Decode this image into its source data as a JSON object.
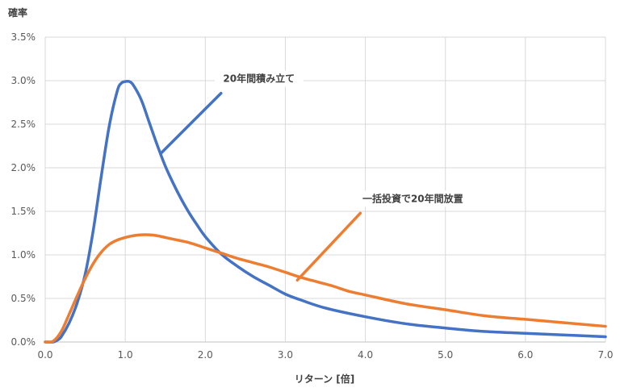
{
  "chart_data": {
    "type": "line",
    "ylabel": "確率",
    "xlabel": "リターン [倍]",
    "xlim": [
      0,
      7
    ],
    "ylim": [
      0,
      0.035
    ],
    "x_ticks": [
      "0.0",
      "1.0",
      "2.0",
      "3.0",
      "4.0",
      "5.0",
      "6.0",
      "7.0"
    ],
    "y_ticks": [
      "0.0%",
      "0.5%",
      "1.0%",
      "1.5%",
      "2.0%",
      "2.5%",
      "3.0%",
      "3.5%"
    ],
    "grid": true,
    "legend": "none",
    "series": [
      {
        "name": "20年間積み立て",
        "color": "#4472C4",
        "points": [
          [
            0.0,
            0.0
          ],
          [
            0.1,
            0.0
          ],
          [
            0.15,
            0.0002
          ],
          [
            0.2,
            0.0006
          ],
          [
            0.3,
            0.0022
          ],
          [
            0.4,
            0.0045
          ],
          [
            0.5,
            0.0078
          ],
          [
            0.6,
            0.0128
          ],
          [
            0.7,
            0.019
          ],
          [
            0.8,
            0.0248
          ],
          [
            0.9,
            0.0288
          ],
          [
            0.95,
            0.0297
          ],
          [
            1.0,
            0.0299
          ],
          [
            1.05,
            0.0299
          ],
          [
            1.1,
            0.0295
          ],
          [
            1.2,
            0.0278
          ],
          [
            1.3,
            0.0252
          ],
          [
            1.4,
            0.0226
          ],
          [
            1.5,
            0.0202
          ],
          [
            1.6,
            0.0182
          ],
          [
            1.7,
            0.0164
          ],
          [
            1.8,
            0.0148
          ],
          [
            1.9,
            0.0134
          ],
          [
            2.0,
            0.0121
          ],
          [
            2.2,
            0.0101
          ],
          [
            2.4,
            0.0087
          ],
          [
            2.6,
            0.0075
          ],
          [
            2.8,
            0.0065
          ],
          [
            3.0,
            0.0055
          ],
          [
            3.2,
            0.0048
          ],
          [
            3.5,
            0.0039
          ],
          [
            4.0,
            0.0029
          ],
          [
            4.5,
            0.0021
          ],
          [
            5.0,
            0.0016
          ],
          [
            5.5,
            0.0012
          ],
          [
            6.0,
            0.001
          ],
          [
            6.5,
            0.0008
          ],
          [
            7.0,
            0.0006
          ]
        ]
      },
      {
        "name": "一括投資で20年間放置",
        "color": "#ED7D31",
        "points": [
          [
            0.0,
            0.0
          ],
          [
            0.1,
            0.0001
          ],
          [
            0.2,
            0.0012
          ],
          [
            0.3,
            0.0032
          ],
          [
            0.4,
            0.0053
          ],
          [
            0.5,
            0.0073
          ],
          [
            0.6,
            0.009
          ],
          [
            0.7,
            0.0103
          ],
          [
            0.8,
            0.0112
          ],
          [
            0.9,
            0.0117
          ],
          [
            1.0,
            0.012
          ],
          [
            1.1,
            0.0122
          ],
          [
            1.2,
            0.0123
          ],
          [
            1.3,
            0.0123
          ],
          [
            1.4,
            0.0122
          ],
          [
            1.5,
            0.012
          ],
          [
            1.6,
            0.0118
          ],
          [
            1.8,
            0.0114
          ],
          [
            2.0,
            0.0108
          ],
          [
            2.2,
            0.0102
          ],
          [
            2.4,
            0.0096
          ],
          [
            2.6,
            0.0091
          ],
          [
            2.8,
            0.0086
          ],
          [
            3.0,
            0.008
          ],
          [
            3.2,
            0.0074
          ],
          [
            3.4,
            0.0069
          ],
          [
            3.6,
            0.0064
          ],
          [
            3.8,
            0.0058
          ],
          [
            4.0,
            0.0054
          ],
          [
            4.5,
            0.0044
          ],
          [
            5.0,
            0.0037
          ],
          [
            5.5,
            0.003
          ],
          [
            6.0,
            0.0026
          ],
          [
            6.5,
            0.0022
          ],
          [
            7.0,
            0.0018
          ]
        ]
      }
    ],
    "annotations": [
      {
        "text": "20年間積み立て",
        "series": 0,
        "x": 1.45,
        "y": 0.0217
      },
      {
        "text": "一括投資で20年間放置",
        "series": 1,
        "x": 3.15,
        "y": 0.0071
      }
    ]
  }
}
